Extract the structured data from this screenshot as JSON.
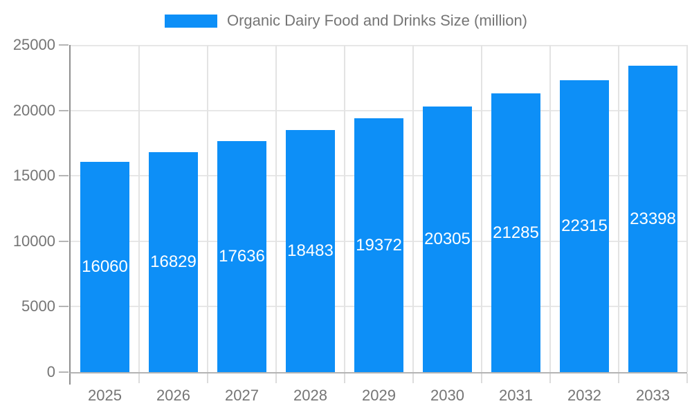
{
  "chart_data": {
    "type": "bar",
    "title": "Organic Dairy Food and Drinks Size (million)",
    "categories": [
      "2025",
      "2026",
      "2027",
      "2028",
      "2029",
      "2030",
      "2031",
      "2032",
      "2033"
    ],
    "values": [
      16060,
      16829,
      17636,
      18483,
      19372,
      20305,
      21285,
      22315,
      23398
    ],
    "xlabel": "",
    "ylabel": "",
    "ylim": [
      0,
      25000
    ],
    "yticks": [
      0,
      5000,
      10000,
      15000,
      20000,
      25000
    ],
    "grid": true,
    "legend_position": "top",
    "bar_color": "#0D8FF7",
    "value_label_color": "#FFFFFF",
    "axis_text_color": "#757575"
  }
}
